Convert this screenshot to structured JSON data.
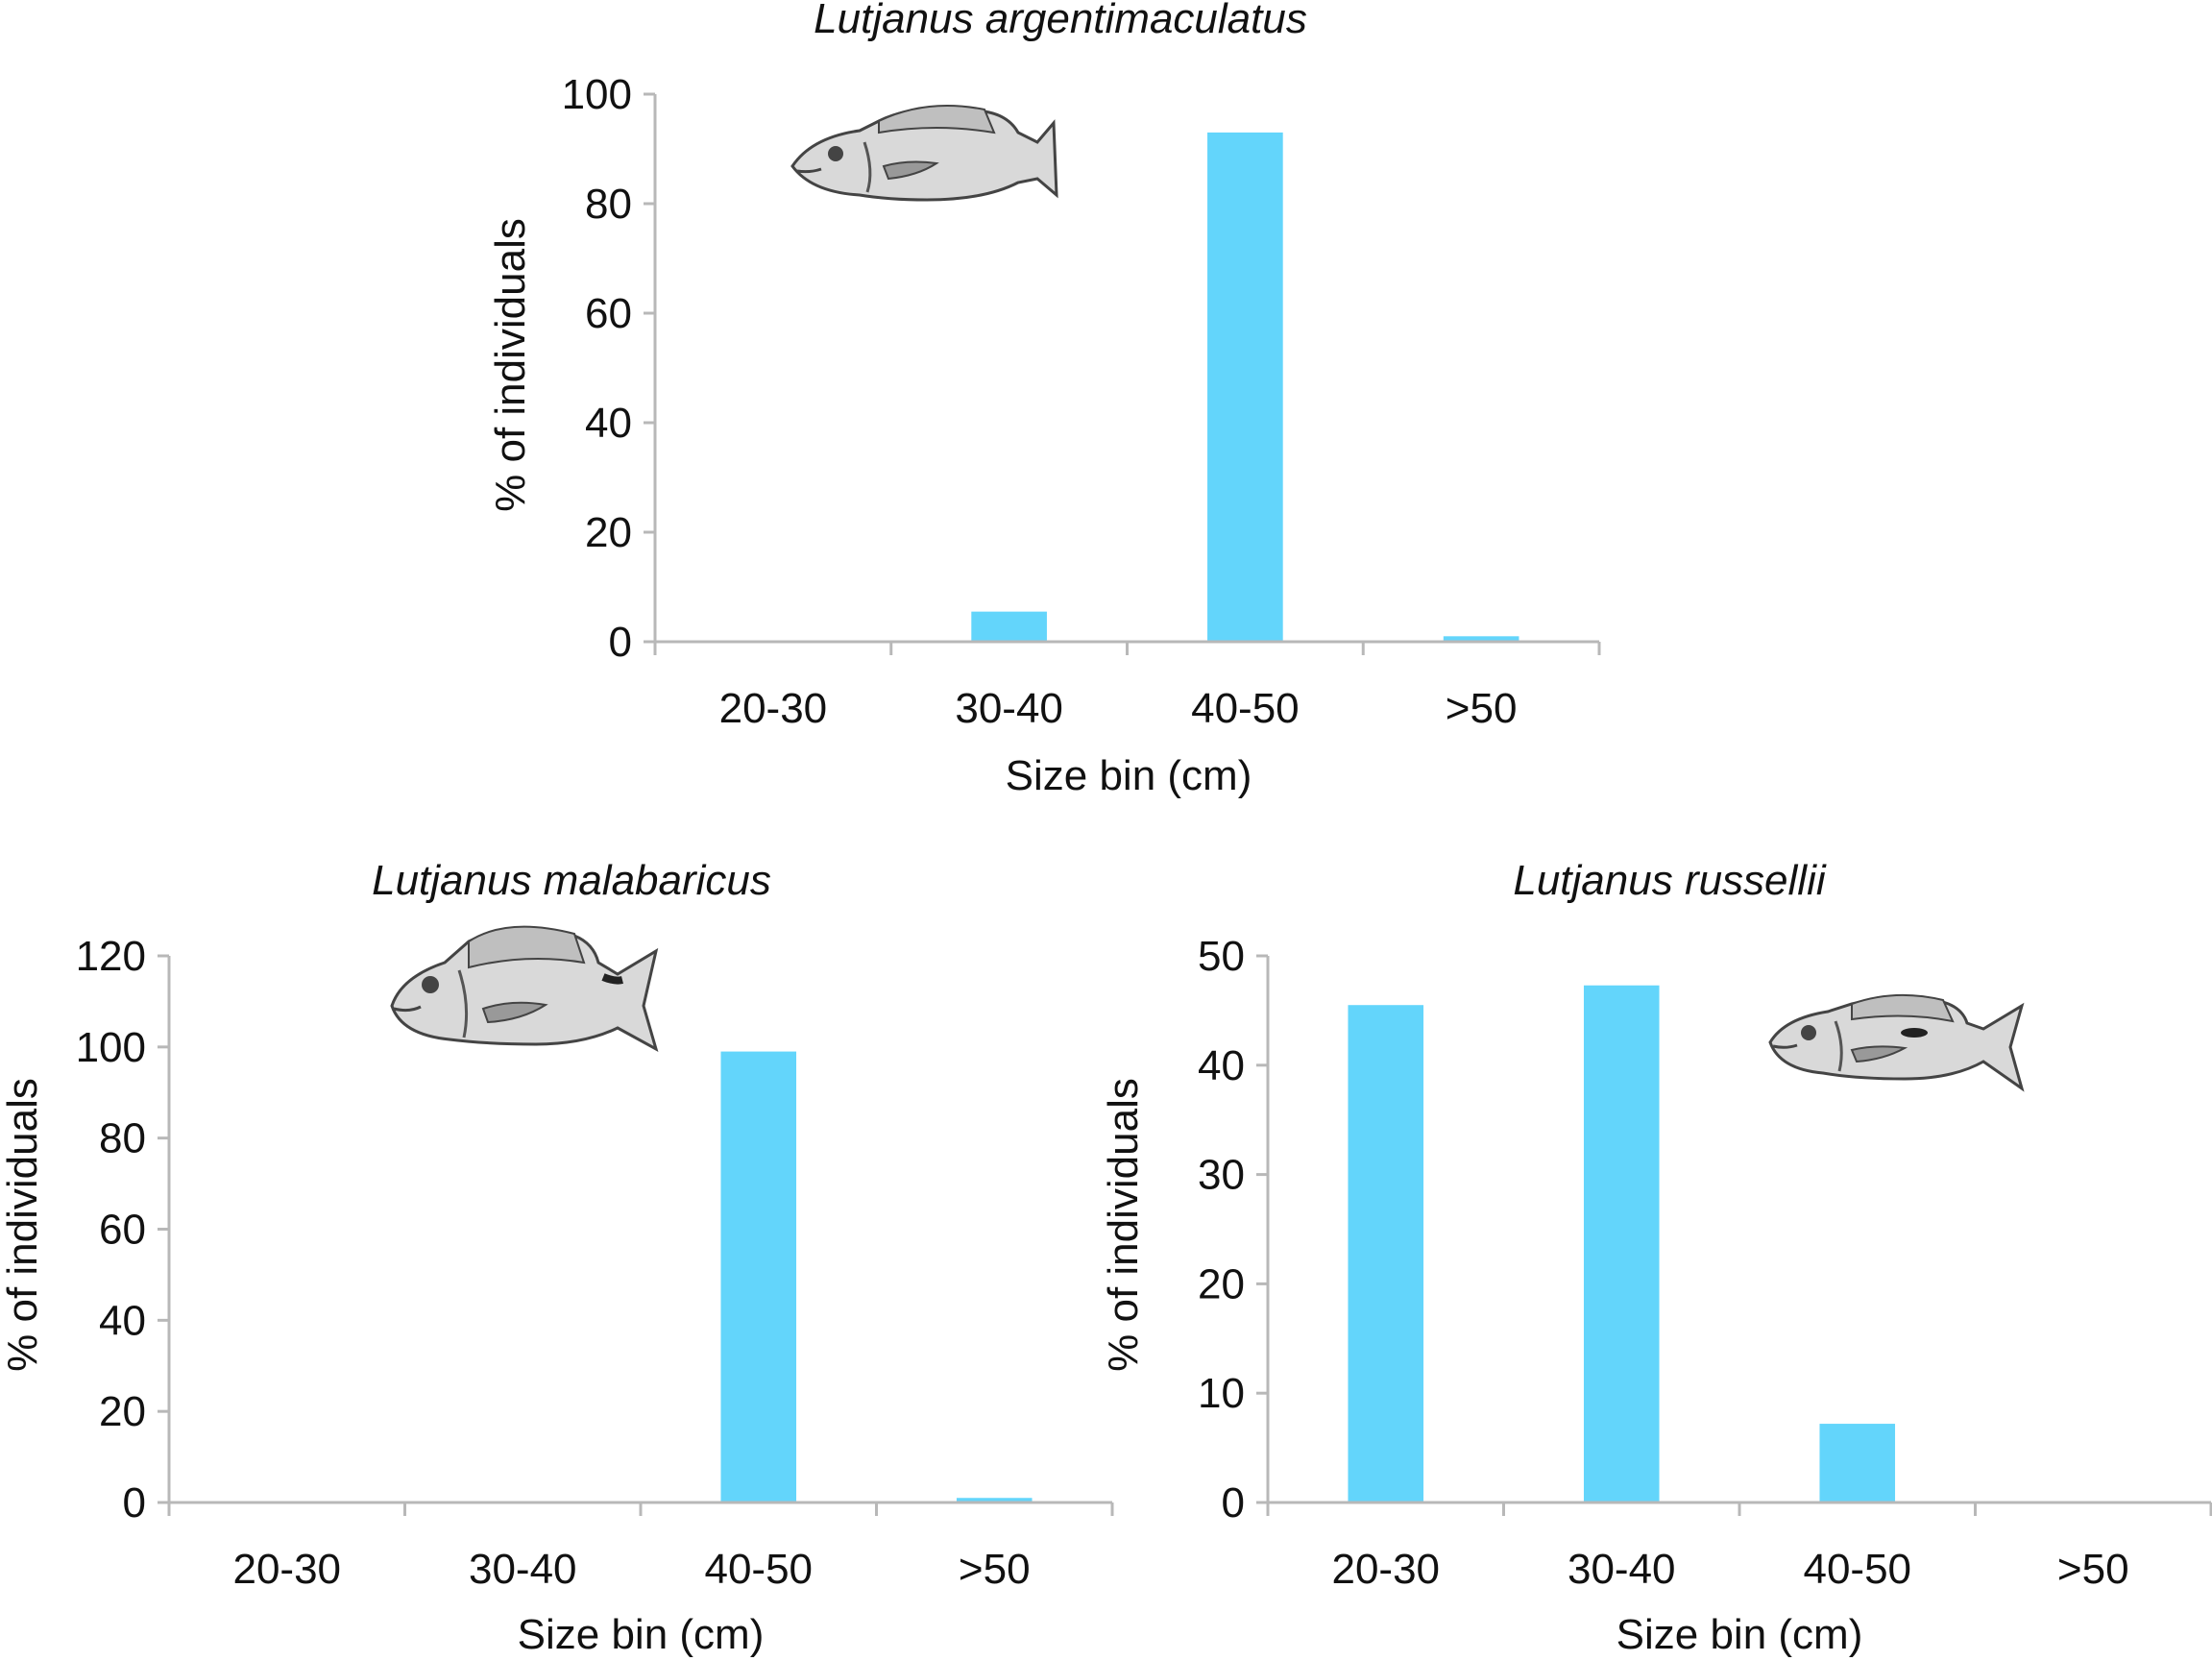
{
  "chart_data": [
    {
      "type": "bar",
      "title": "Lutjanus argentimaculatus",
      "xlabel": "Size bin (cm)",
      "ylabel": "% of individuals",
      "categories": [
        "20-30",
        "30-40",
        "40-50",
        ">50"
      ],
      "values": [
        0,
        5.5,
        93,
        1
      ],
      "ylim": [
        0,
        100
      ],
      "yticks": [
        0,
        20,
        40,
        60,
        80,
        100
      ],
      "grid": false,
      "bar_color": "#63d5fb",
      "illustration": "fish-illustration"
    },
    {
      "type": "bar",
      "title": "Lutjanus malabaricus",
      "xlabel": "Size bin (cm)",
      "ylabel": "% of individuals",
      "categories": [
        "20-30",
        "30-40",
        "40-50",
        ">50"
      ],
      "values": [
        0,
        0,
        99,
        1
      ],
      "ylim": [
        0,
        120
      ],
      "yticks": [
        0,
        20,
        40,
        60,
        80,
        100,
        120
      ],
      "grid": false,
      "bar_color": "#63d5fb",
      "illustration": "fish-illustration"
    },
    {
      "type": "bar",
      "title": "Lutjanus russellii",
      "xlabel": "Size bin (cm)",
      "ylabel": "% of individuals",
      "categories": [
        "20-30",
        "30-40",
        "40-50",
        ">50"
      ],
      "values": [
        45.5,
        47.3,
        7.2,
        0
      ],
      "ylim": [
        0,
        50
      ],
      "yticks": [
        0,
        10,
        20,
        30,
        40,
        50
      ],
      "grid": false,
      "bar_color": "#63d5fb",
      "illustration": "fish-illustration"
    }
  ]
}
